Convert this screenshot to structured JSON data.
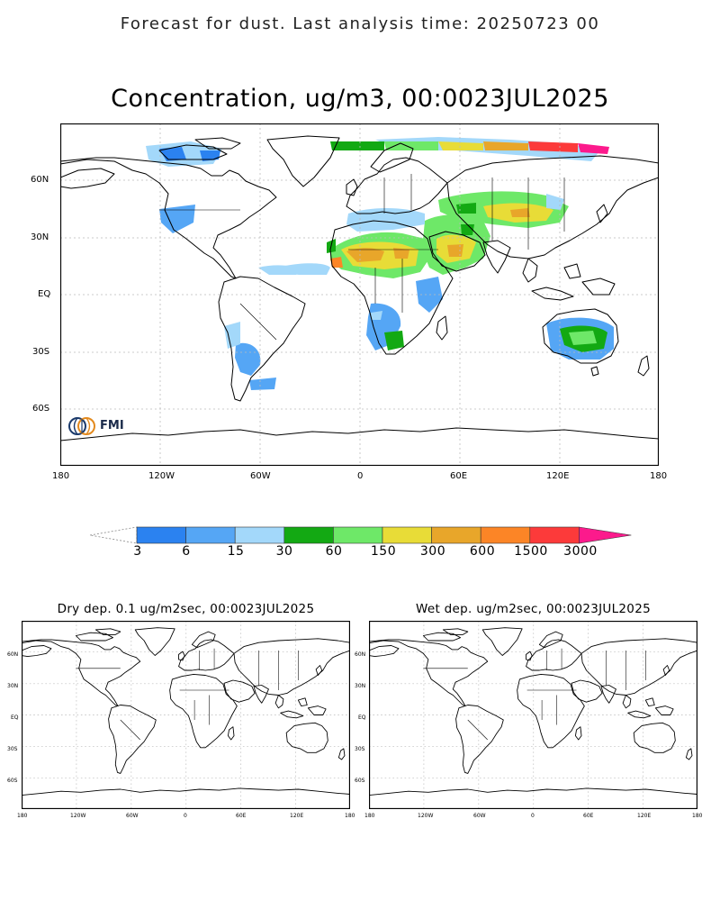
{
  "header": {
    "title": "Forecast for dust. Last analysis time: 20250723 00"
  },
  "main_map": {
    "title": "Concentration, ug/m3, 00:0023JUL2025",
    "lat_labels": [
      "60N",
      "30N",
      "EQ",
      "30S",
      "60S"
    ],
    "lon_labels": [
      "180",
      "120W",
      "60W",
      "0",
      "60E",
      "120E",
      "180"
    ],
    "logo_text": "FMI",
    "logo_icon": "fmi-logo-icon"
  },
  "colorbar": {
    "labels": [
      "3",
      "6",
      "15",
      "30",
      "60",
      "150",
      "300",
      "600",
      "1500",
      "3000"
    ],
    "colors": [
      "#2b82f0",
      "#55a6f5",
      "#a3d8fa",
      "#13a913",
      "#6ee868",
      "#e8dc37",
      "#e8a62a",
      "#fc8526",
      "#fc3a3a",
      "#fc1a8c"
    ]
  },
  "dry_map": {
    "title": "Dry dep. 0.1 ug/m2sec, 00:0023JUL2025",
    "lat_labels": [
      "60N",
      "30N",
      "EQ",
      "30S",
      "60S"
    ],
    "lon_labels": [
      "180",
      "120W",
      "60W",
      "0",
      "60E",
      "120E",
      "180"
    ]
  },
  "wet_map": {
    "title": "Wet dep. ug/m2sec, 00:0023JUL2025",
    "lat_labels": [
      "60N",
      "30N",
      "EQ",
      "30S",
      "60S"
    ],
    "lon_labels": [
      "180",
      "120W",
      "60W",
      "0",
      "60E",
      "120E",
      "180"
    ]
  }
}
